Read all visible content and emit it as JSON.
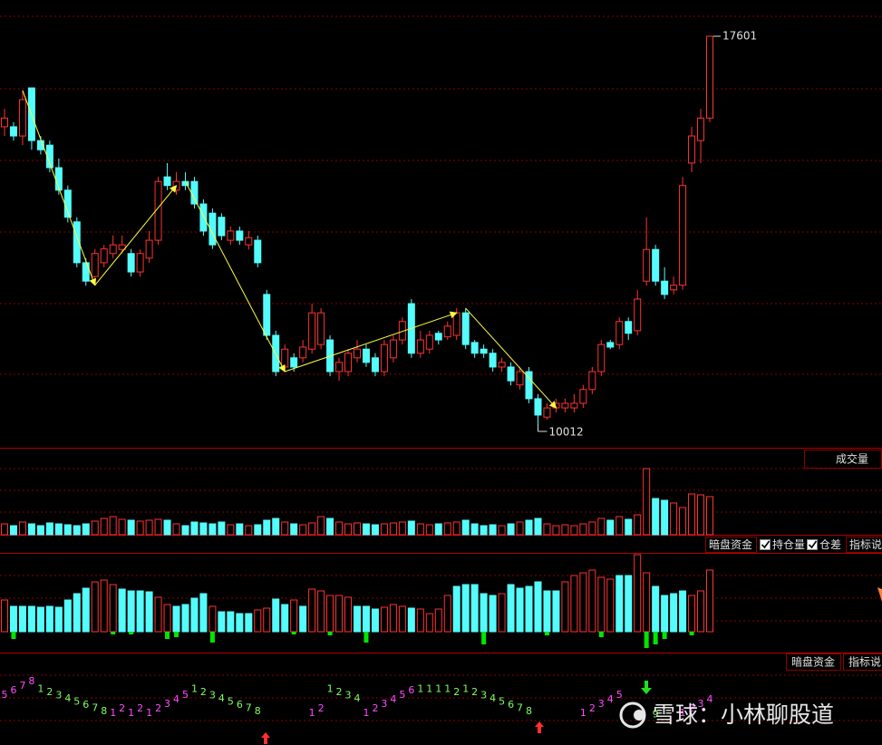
{
  "chart_data": [
    {
      "type": "candlestick",
      "open": [
        15830,
        15830,
        15650,
        16590,
        15560,
        15470,
        15030,
        14590,
        13970,
        13170,
        12900,
        13170,
        13350,
        13430,
        13350,
        12990,
        13260,
        13610,
        14850,
        14590,
        14760,
        14760,
        14320,
        14140,
        14060,
        13610,
        13790,
        13520,
        13610,
        12550,
        11750,
        11130,
        11310,
        11310,
        11480,
        11570,
        11660,
        11040,
        11040,
        11310,
        11480,
        11310,
        11040,
        11310,
        11660,
        12370,
        11400,
        11480,
        11790,
        11720,
        11750,
        12190,
        11610,
        11480,
        11400,
        11130,
        11130,
        10780,
        11040,
        10510,
        10150,
        10330,
        10330,
        10330,
        10420,
        10690,
        11040,
        11610,
        11570,
        12020,
        11840,
        12810,
        13430,
        12810,
        12640,
        12730,
        15120,
        15560,
        16000
      ],
      "high": [
        16180,
        15920,
        16540,
        16590,
        15650,
        15560,
        15210,
        14680,
        14060,
        13260,
        13440,
        13520,
        13700,
        13700,
        13440,
        13430,
        13790,
        14850,
        15120,
        14940,
        14940,
        14850,
        14410,
        14230,
        14140,
        13880,
        13880,
        13790,
        13700,
        12640,
        11840,
        11570,
        11400,
        11660,
        12370,
        12280,
        11750,
        11310,
        11480,
        11660,
        11570,
        11400,
        11660,
        11750,
        12100,
        12460,
        11840,
        11840,
        11840,
        12020,
        12280,
        12280,
        11660,
        11570,
        11480,
        11310,
        11220,
        11130,
        11130,
        10600,
        10420,
        10510,
        10510,
        10600,
        10780,
        11130,
        11660,
        11660,
        12100,
        12100,
        12640,
        14060,
        13520,
        13080,
        12900,
        14850,
        15830,
        16180,
        17601
      ],
      "low": [
        15650,
        15560,
        15470,
        15380,
        15290,
        14940,
        14500,
        13960,
        13080,
        12720,
        12730,
        13080,
        13260,
        13350,
        12900,
        12900,
        13170,
        13520,
        14590,
        14500,
        14590,
        14230,
        13700,
        13440,
        13610,
        13520,
        13520,
        13430,
        13080,
        11660,
        10950,
        11040,
        11040,
        11220,
        11390,
        11480,
        10950,
        10860,
        10950,
        11220,
        11130,
        10950,
        10950,
        11220,
        11570,
        11310,
        11310,
        11390,
        11570,
        11660,
        11660,
        11480,
        11310,
        11310,
        11040,
        11040,
        10770,
        10690,
        10420,
        10012,
        10100,
        10240,
        10240,
        10240,
        10330,
        10600,
        10950,
        11480,
        11480,
        11660,
        11750,
        12720,
        12720,
        12460,
        12550,
        12640,
        14940,
        15120,
        15920
      ],
      "close": [
        16000,
        15650,
        16360,
        15560,
        15380,
        15030,
        14590,
        14060,
        13170,
        12810,
        13350,
        13440,
        13520,
        13520,
        12990,
        13350,
        13610,
        14760,
        14680,
        14760,
        14680,
        14320,
        13790,
        13520,
        13700,
        13790,
        13610,
        13660,
        13170,
        11750,
        11040,
        11480,
        11130,
        11520,
        12190,
        12190,
        11040,
        11220,
        11400,
        11480,
        11220,
        11040,
        11570,
        11660,
        12020,
        11400,
        11660,
        11750,
        11660,
        11930,
        12190,
        11570,
        11400,
        11400,
        11130,
        11220,
        10860,
        11040,
        10510,
        10190,
        10330,
        10420,
        10420,
        10420,
        10690,
        11040,
        11570,
        11520,
        12020,
        11790,
        12460,
        13430,
        12810,
        12550,
        12730,
        14680,
        15650,
        16000,
        17601
      ],
      "up_color": "#ff3232",
      "down_color": "#54fcfc",
      "high_label": 17601,
      "low_label": 10012,
      "zigzag": [
        [
          [
            2,
            16540
          ],
          [
            10,
            12730
          ]
        ],
        [
          [
            10,
            12730
          ],
          [
            19,
            14680
          ]
        ],
        [
          [
            20,
            14760
          ],
          [
            31,
            11040
          ]
        ],
        [
          [
            31,
            11040
          ],
          [
            50,
            12190
          ]
        ],
        [
          [
            51,
            12280
          ],
          [
            61,
            10330
          ]
        ]
      ],
      "zigzag_color": "#ffff40"
    },
    {
      "type": "volume",
      "title": "成交量",
      "values": [
        12,
        10,
        14,
        12,
        10,
        13,
        12,
        11,
        10,
        12,
        15,
        18,
        20,
        17,
        16,
        15,
        16,
        17,
        16,
        12,
        10,
        14,
        13,
        12,
        14,
        11,
        12,
        10,
        11,
        16,
        18,
        14,
        12,
        11,
        13,
        20,
        18,
        14,
        12,
        13,
        12,
        11,
        12,
        13,
        14,
        15,
        12,
        11,
        12,
        13,
        14,
        16,
        12,
        10,
        11,
        10,
        12,
        14,
        16,
        18,
        12,
        10,
        11,
        10,
        12,
        14,
        18,
        16,
        20,
        17,
        22,
        73,
        40,
        38,
        35,
        30,
        45,
        44,
        42
      ]
    },
    {
      "type": "bar",
      "title": "暗盘资金",
      "options": [
        "持仓量",
        "仓差"
      ],
      "help": "指标说",
      "values": [
        35,
        28,
        28,
        28,
        27,
        28,
        27,
        35,
        42,
        48,
        55,
        57,
        52,
        47,
        45,
        45,
        44,
        38,
        30,
        28,
        30,
        37,
        42,
        28,
        22,
        22,
        20,
        20,
        24,
        26,
        36,
        30,
        35,
        28,
        47,
        45,
        40,
        40,
        38,
        28,
        28,
        25,
        27,
        30,
        28,
        26,
        25,
        20,
        25,
        40,
        50,
        52,
        52,
        42,
        40,
        42,
        52,
        48,
        50,
        55,
        45,
        45,
        55,
        62,
        65,
        68,
        60,
        58,
        62,
        62,
        85,
        65,
        50,
        40,
        42,
        45,
        40,
        45,
        68
      ],
      "colors": [
        "#ff3232",
        "#54fcfc",
        "#54fcfc",
        "#54fcfc",
        "#54fcfc",
        "#54fcfc",
        "#54fcfc",
        "#54fcfc",
        "#54fcfc",
        "#54fcfc",
        "#ff3232",
        "#ff3232",
        "#ff3232",
        "#54fcfc",
        "#54fcfc",
        "#54fcfc",
        "#54fcfc",
        "#ff3232",
        "#ff3232",
        "#54fcfc",
        "#54fcfc",
        "#54fcfc",
        "#54fcfc",
        "#ff3232",
        "#54fcfc",
        "#54fcfc",
        "#54fcfc",
        "#54fcfc",
        "#ff3232",
        "#ff3232",
        "#54fcfc",
        "#54fcfc",
        "#ff3232",
        "#54fcfc",
        "#ff3232",
        "#ff3232",
        "#ff3232",
        "#ff3232",
        "#ff3232",
        "#54fcfc",
        "#54fcfc",
        "#54fcfc",
        "#ff3232",
        "#ff3232",
        "#ff3232",
        "#54fcfc",
        "#ff3232",
        "#ff3232",
        "#ff3232",
        "#ff3232",
        "#54fcfc",
        "#54fcfc",
        "#54fcfc",
        "#54fcfc",
        "#54fcfc",
        "#ff3232",
        "#54fcfc",
        "#54fcfc",
        "#54fcfc",
        "#54fcfc",
        "#54fcfc",
        "#54fcfc",
        "#ff3232",
        "#ff3232",
        "#ff3232",
        "#ff3232",
        "#ff3232",
        "#ff3232",
        "#54fcfc",
        "#54fcfc",
        "#ff3232",
        "#ff3232",
        "#54fcfc",
        "#54fcfc",
        "#54fcfc",
        "#54fcfc",
        "#ff3232",
        "#ff3232",
        "#ff3232"
      ],
      "negative_values": [
        null,
        -8,
        null,
        null,
        null,
        null,
        null,
        null,
        null,
        null,
        null,
        null,
        -3,
        null,
        -3,
        null,
        null,
        null,
        -8,
        -6,
        null,
        null,
        null,
        -12,
        null,
        null,
        null,
        null,
        null,
        null,
        null,
        null,
        -3,
        null,
        null,
        null,
        -4,
        null,
        null,
        null,
        -12,
        null,
        null,
        null,
        null,
        null,
        null,
        null,
        null,
        null,
        null,
        null,
        null,
        -14,
        null,
        null,
        null,
        null,
        null,
        null,
        -4,
        null,
        null,
        null,
        null,
        null,
        -6,
        null,
        null,
        null,
        null,
        -18,
        -14,
        -8,
        null,
        null,
        -4,
        null,
        null
      ],
      "negative_color": "#00e600"
    },
    {
      "type": "sequence",
      "title": "暗盘资金",
      "help": "指标说",
      "counts": [
        "5",
        "6",
        "7",
        "8",
        "1",
        "2",
        "3",
        "4",
        "5",
        "6",
        "7",
        "8",
        "1",
        "2",
        "1",
        "2",
        "1",
        "2",
        "3",
        "4",
        "5",
        "1",
        "2",
        "3",
        "4",
        "5",
        "6",
        "7",
        "8",
        null,
        null,
        null,
        null,
        null,
        "1",
        "2",
        "1",
        "2",
        "3",
        "4",
        "1",
        "2",
        "3",
        "4",
        "5",
        "6",
        "1",
        "1",
        "1",
        "1",
        "2",
        "1",
        "2",
        "3",
        "4",
        "5",
        "6",
        "7",
        "8",
        null,
        null,
        null,
        null,
        null,
        "1",
        "2",
        "3",
        "4",
        "5",
        null,
        null,
        null,
        "9",
        null,
        null,
        "1",
        "2",
        "3",
        "4"
      ],
      "colors": [
        "#ff4dff",
        "#ff4dff",
        "#ff4dff",
        "#ff4dff",
        "#80ff60",
        "#80ff60",
        "#80ff60",
        "#80ff60",
        "#80ff60",
        "#80ff60",
        "#80ff60",
        "#80ff60",
        "#ff4dff",
        "#ff4dff",
        "#ff4dff",
        "#ff4dff",
        "#ff4dff",
        "#ff4dff",
        "#ff4dff",
        "#ff4dff",
        "#ff4dff",
        "#80ff60",
        "#80ff60",
        "#80ff60",
        "#80ff60",
        "#80ff60",
        "#80ff60",
        "#80ff60",
        "#80ff60",
        null,
        null,
        null,
        null,
        null,
        "#ff4dff",
        "#ff4dff",
        "#80ff60",
        "#80ff60",
        "#80ff60",
        "#80ff60",
        "#ff4dff",
        "#ff4dff",
        "#ff4dff",
        "#ff4dff",
        "#ff4dff",
        "#ff4dff",
        "#80ff60",
        "#80ff60",
        "#80ff60",
        "#80ff60",
        "#80ff60",
        "#80ff60",
        "#80ff60",
        "#80ff60",
        "#80ff60",
        "#80ff60",
        "#80ff60",
        "#80ff60",
        "#80ff60",
        null,
        null,
        null,
        null,
        null,
        "#ff4dff",
        "#ff4dff",
        "#ff4dff",
        "#ff4dff",
        "#ff4dff",
        null,
        null,
        null,
        "#80ff60",
        null,
        null,
        "#ff4dff",
        "#ff4dff",
        "#ff4dff",
        "#ff4dff"
      ]
    }
  ],
  "watermark": "雪球：小林聊股道"
}
